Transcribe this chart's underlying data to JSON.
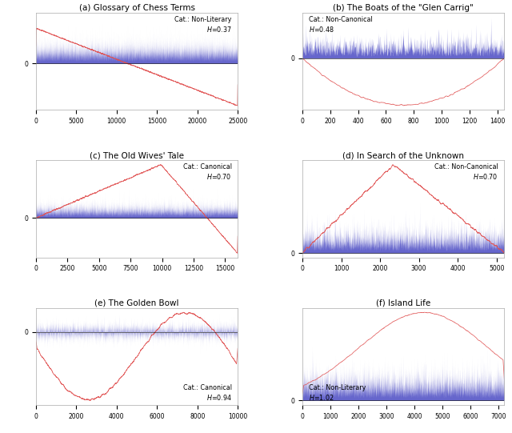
{
  "subplots": [
    {
      "title": "(a) Glossary of Chess Terms",
      "category": "Non-Literary",
      "H": "0.37",
      "annotation_loc": "upper right",
      "n": 25000,
      "xlim": [
        0,
        25000
      ],
      "xticks": [
        0,
        5000,
        10000,
        15000,
        20000,
        25000
      ],
      "red_shape": "decay_cross",
      "blue_shape": "dense_pos"
    },
    {
      "title": "(b) The Boats of the \"Glen Carrig\"",
      "category": "Non-Canonical",
      "H": "0.48",
      "annotation_loc": "upper left",
      "n": 1450,
      "xlim": [
        0,
        1450
      ],
      "xticks": [
        0,
        200,
        400,
        600,
        800,
        1000,
        1200,
        1400
      ],
      "red_shape": "bowl_neg",
      "blue_shape": "small_pos"
    },
    {
      "title": "(c) The Old Wives' Tale",
      "category": "Canonical",
      "H": "0.70",
      "annotation_loc": "upper right",
      "n": 16000,
      "xlim": [
        0,
        16000
      ],
      "xticks": [
        0,
        2500,
        5000,
        7500,
        10000,
        12500,
        15000
      ],
      "red_shape": "hump_pos_fall",
      "blue_shape": "small_pos"
    },
    {
      "title": "(d) In Search of the Unknown",
      "category": "Non-Canonical",
      "H": "0.70",
      "annotation_loc": "upper right",
      "n": 5200,
      "xlim": [
        0,
        5200
      ],
      "xticks": [
        0,
        1000,
        2000,
        3000,
        4000,
        5000
      ],
      "red_shape": "rise_fall_pos",
      "blue_shape": "small_pos"
    },
    {
      "title": "(e) The Golden Bowl",
      "category": "Canonical",
      "H": "0.94",
      "annotation_loc": "lower right",
      "n": 10000,
      "xlim": [
        0,
        10000
      ],
      "xticks": [
        0,
        2000,
        4000,
        6000,
        8000,
        10000
      ],
      "red_shape": "wander_neg",
      "blue_shape": "tiny_centered"
    },
    {
      "title": "(f) Island Life",
      "category": "Non-Literary",
      "H": "1.02",
      "annotation_loc": "lower left",
      "n": 7200,
      "xlim": [
        0,
        7200
      ],
      "xticks": [
        0,
        1000,
        2000,
        3000,
        4000,
        5000,
        6000,
        7000
      ],
      "red_shape": "hump_pos_right",
      "blue_shape": "small_pos"
    }
  ],
  "red_color": "#e05050",
  "blue_color": "#3333bb",
  "blue_alpha": 0.75
}
